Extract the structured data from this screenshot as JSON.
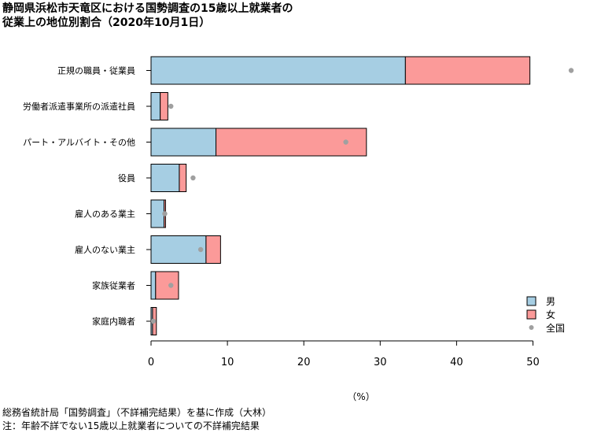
{
  "title_line1": "静岡県浜松市天竜区における国勢調査の15歳以上就業者の",
  "title_line2": "従業上の地位別割合（2020年10月1日）",
  "footer_line1": "総務省統計局「国勢調査」（不詳補完結果）を基に作成（大林）",
  "footer_line2": "注：年齢不詳でない15歳以上就業者についての不詳補完結果",
  "chart_data": {
    "type": "bar",
    "orientation": "horizontal",
    "stacked": true,
    "categories": [
      "正規の職員・従業員",
      "労働者派遣事業所の派遣社員",
      "パート・アルバイト・その他",
      "役員",
      "雇人のある業主",
      "雇人のない業主",
      "家族従業者",
      "家庭内職者"
    ],
    "series": [
      {
        "name": "男",
        "color": "#a6cee3",
        "values": [
          33.3,
          1.2,
          8.5,
          3.7,
          1.7,
          7.2,
          0.6,
          0.2
        ]
      },
      {
        "name": "女",
        "color": "#fb9a99",
        "values": [
          16.3,
          1.0,
          19.7,
          0.9,
          0.2,
          1.9,
          3.0,
          0.5
        ]
      }
    ],
    "markers": {
      "name": "全国",
      "color": "#a0a0a0",
      "values": [
        55.0,
        2.6,
        25.5,
        5.5,
        1.8,
        6.5,
        2.6,
        0.3
      ]
    },
    "x_ticks": [
      0,
      10,
      20,
      30,
      40,
      50
    ],
    "xlim": [
      0,
      55
    ],
    "xlabel": "（%）",
    "legend_position": "bottom-right",
    "grid": false
  }
}
